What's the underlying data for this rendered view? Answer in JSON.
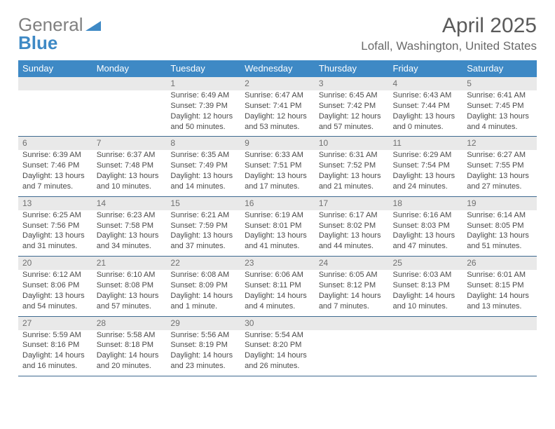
{
  "brand": {
    "name_gray": "General",
    "name_blue": "Blue"
  },
  "title": "April 2025",
  "location": "Lofall, Washington, United States",
  "colors": {
    "header_bg": "#3e89c5",
    "header_text": "#ffffff",
    "row_divider": "#3e6a90",
    "daynum_bg": "#e9e9e9",
    "daynum_text": "#707070",
    "body_text": "#4a4a4a",
    "title_text": "#5a5a5a",
    "location_text": "#6a6a6a",
    "logo_gray": "#808080",
    "logo_blue": "#3e89c5",
    "page_bg": "#ffffff"
  },
  "typography": {
    "title_fontsize": 30,
    "location_fontsize": 17,
    "weekday_fontsize": 13,
    "daynum_fontsize": 12,
    "cell_fontsize": 11,
    "logo_fontsize": 26
  },
  "layout": {
    "columns": 7,
    "rows": 5,
    "start_weekday_index": 2
  },
  "weekdays": [
    "Sunday",
    "Monday",
    "Tuesday",
    "Wednesday",
    "Thursday",
    "Friday",
    "Saturday"
  ],
  "days": [
    {
      "n": 1,
      "sunrise": "6:49 AM",
      "sunset": "7:39 PM",
      "daylight": "12 hours and 50 minutes."
    },
    {
      "n": 2,
      "sunrise": "6:47 AM",
      "sunset": "7:41 PM",
      "daylight": "12 hours and 53 minutes."
    },
    {
      "n": 3,
      "sunrise": "6:45 AM",
      "sunset": "7:42 PM",
      "daylight": "12 hours and 57 minutes."
    },
    {
      "n": 4,
      "sunrise": "6:43 AM",
      "sunset": "7:44 PM",
      "daylight": "13 hours and 0 minutes."
    },
    {
      "n": 5,
      "sunrise": "6:41 AM",
      "sunset": "7:45 PM",
      "daylight": "13 hours and 4 minutes."
    },
    {
      "n": 6,
      "sunrise": "6:39 AM",
      "sunset": "7:46 PM",
      "daylight": "13 hours and 7 minutes."
    },
    {
      "n": 7,
      "sunrise": "6:37 AM",
      "sunset": "7:48 PM",
      "daylight": "13 hours and 10 minutes."
    },
    {
      "n": 8,
      "sunrise": "6:35 AM",
      "sunset": "7:49 PM",
      "daylight": "13 hours and 14 minutes."
    },
    {
      "n": 9,
      "sunrise": "6:33 AM",
      "sunset": "7:51 PM",
      "daylight": "13 hours and 17 minutes."
    },
    {
      "n": 10,
      "sunrise": "6:31 AM",
      "sunset": "7:52 PM",
      "daylight": "13 hours and 21 minutes."
    },
    {
      "n": 11,
      "sunrise": "6:29 AM",
      "sunset": "7:54 PM",
      "daylight": "13 hours and 24 minutes."
    },
    {
      "n": 12,
      "sunrise": "6:27 AM",
      "sunset": "7:55 PM",
      "daylight": "13 hours and 27 minutes."
    },
    {
      "n": 13,
      "sunrise": "6:25 AM",
      "sunset": "7:56 PM",
      "daylight": "13 hours and 31 minutes."
    },
    {
      "n": 14,
      "sunrise": "6:23 AM",
      "sunset": "7:58 PM",
      "daylight": "13 hours and 34 minutes."
    },
    {
      "n": 15,
      "sunrise": "6:21 AM",
      "sunset": "7:59 PM",
      "daylight": "13 hours and 37 minutes."
    },
    {
      "n": 16,
      "sunrise": "6:19 AM",
      "sunset": "8:01 PM",
      "daylight": "13 hours and 41 minutes."
    },
    {
      "n": 17,
      "sunrise": "6:17 AM",
      "sunset": "8:02 PM",
      "daylight": "13 hours and 44 minutes."
    },
    {
      "n": 18,
      "sunrise": "6:16 AM",
      "sunset": "8:03 PM",
      "daylight": "13 hours and 47 minutes."
    },
    {
      "n": 19,
      "sunrise": "6:14 AM",
      "sunset": "8:05 PM",
      "daylight": "13 hours and 51 minutes."
    },
    {
      "n": 20,
      "sunrise": "6:12 AM",
      "sunset": "8:06 PM",
      "daylight": "13 hours and 54 minutes."
    },
    {
      "n": 21,
      "sunrise": "6:10 AM",
      "sunset": "8:08 PM",
      "daylight": "13 hours and 57 minutes."
    },
    {
      "n": 22,
      "sunrise": "6:08 AM",
      "sunset": "8:09 PM",
      "daylight": "14 hours and 1 minute."
    },
    {
      "n": 23,
      "sunrise": "6:06 AM",
      "sunset": "8:11 PM",
      "daylight": "14 hours and 4 minutes."
    },
    {
      "n": 24,
      "sunrise": "6:05 AM",
      "sunset": "8:12 PM",
      "daylight": "14 hours and 7 minutes."
    },
    {
      "n": 25,
      "sunrise": "6:03 AM",
      "sunset": "8:13 PM",
      "daylight": "14 hours and 10 minutes."
    },
    {
      "n": 26,
      "sunrise": "6:01 AM",
      "sunset": "8:15 PM",
      "daylight": "14 hours and 13 minutes."
    },
    {
      "n": 27,
      "sunrise": "5:59 AM",
      "sunset": "8:16 PM",
      "daylight": "14 hours and 16 minutes."
    },
    {
      "n": 28,
      "sunrise": "5:58 AM",
      "sunset": "8:18 PM",
      "daylight": "14 hours and 20 minutes."
    },
    {
      "n": 29,
      "sunrise": "5:56 AM",
      "sunset": "8:19 PM",
      "daylight": "14 hours and 23 minutes."
    },
    {
      "n": 30,
      "sunrise": "5:54 AM",
      "sunset": "8:20 PM",
      "daylight": "14 hours and 26 minutes."
    }
  ],
  "labels": {
    "sunrise": "Sunrise:",
    "sunset": "Sunset:",
    "daylight": "Daylight:"
  }
}
